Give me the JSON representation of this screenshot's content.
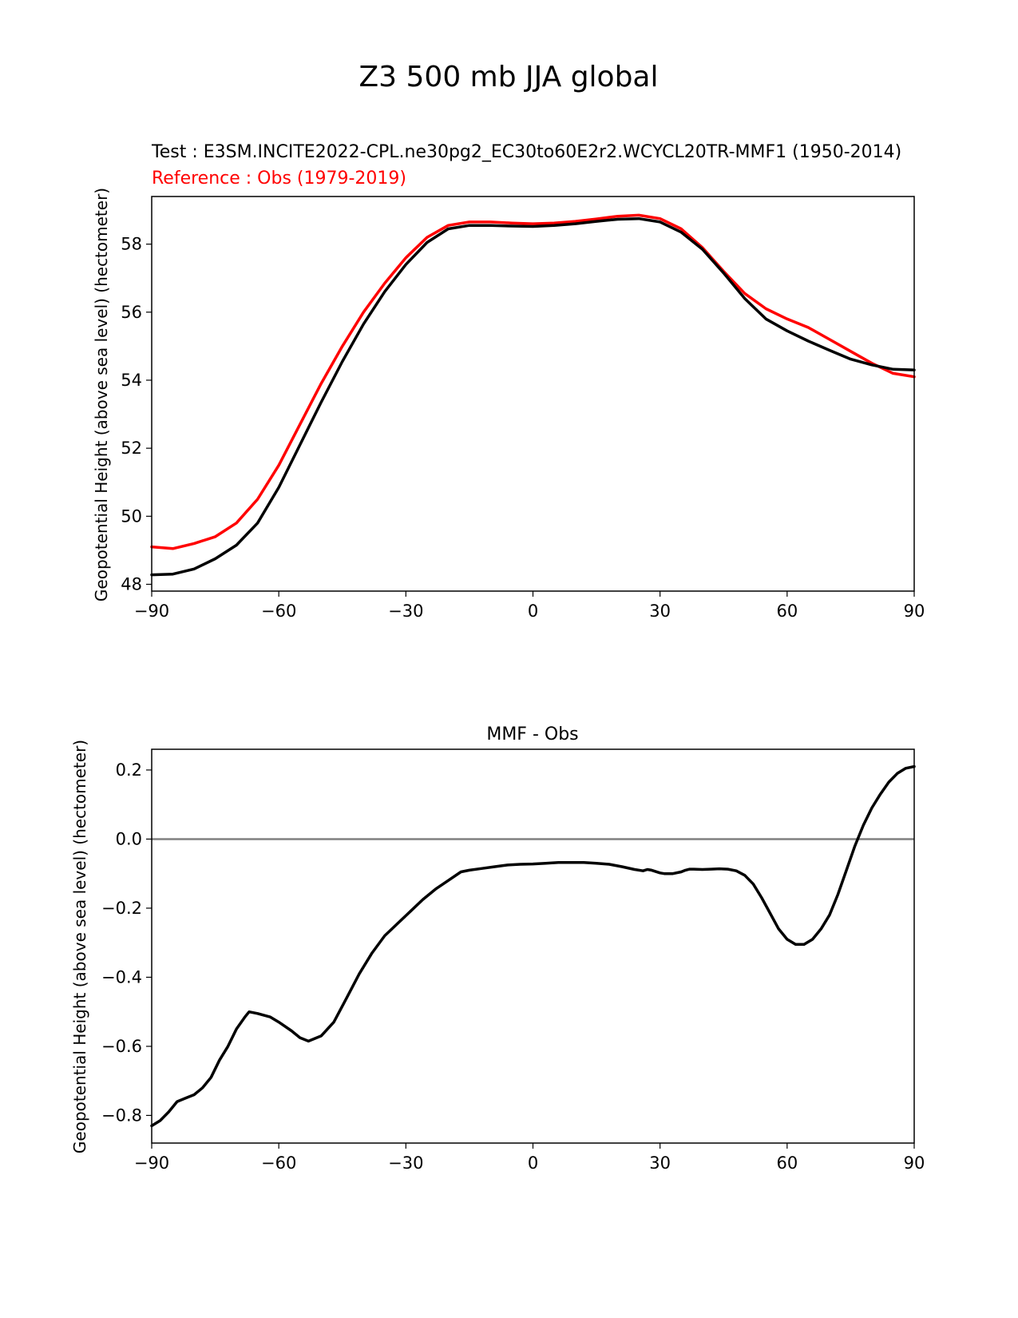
{
  "figure_title": "Z3 500 mb JJA global",
  "colors": {
    "test": "#000000",
    "reference": "#ff0000",
    "zero_line": "#808080"
  },
  "chart_data": [
    {
      "type": "line",
      "title_test": "Test : E3SM.INCITE2022-CPL.ne30pg2_EC30to60E2r2.WCYCL20TR-MMF1 (1950-2014)",
      "title_reference": "Reference : Obs (1979-2019)",
      "xlabel": "",
      "ylabel": "Geopotential Height (above sea level) (hectometer)",
      "xlim": [
        -90,
        90
      ],
      "ylim": [
        47.8,
        59.4
      ],
      "xticks": [
        -90,
        -60,
        -30,
        0,
        30,
        60,
        90
      ],
      "xtick_labels": [
        "−90",
        "−60",
        "−30",
        "0",
        "30",
        "60",
        "90"
      ],
      "yticks": [
        48,
        50,
        52,
        54,
        56,
        58
      ],
      "ytick_labels": [
        "48",
        "50",
        "52",
        "54",
        "56",
        "58"
      ],
      "x": [
        -90,
        -85,
        -80,
        -75,
        -70,
        -65,
        -60,
        -55,
        -50,
        -45,
        -40,
        -35,
        -30,
        -25,
        -20,
        -15,
        -10,
        -5,
        0,
        5,
        10,
        15,
        20,
        25,
        30,
        35,
        40,
        45,
        50,
        55,
        60,
        65,
        70,
        75,
        80,
        85,
        90
      ],
      "series": [
        {
          "name": "Reference : Obs (1979-2019)",
          "color": "#ff0000",
          "values": [
            49.1,
            49.05,
            49.2,
            49.4,
            49.8,
            50.5,
            51.5,
            52.7,
            53.9,
            55.0,
            56.0,
            56.85,
            57.6,
            58.2,
            58.55,
            58.65,
            58.65,
            58.62,
            58.6,
            58.62,
            58.67,
            58.74,
            58.82,
            58.85,
            58.75,
            58.45,
            57.9,
            57.2,
            56.55,
            56.1,
            55.8,
            55.55,
            55.2,
            54.85,
            54.5,
            54.2,
            54.1
          ]
        },
        {
          "name": "Test : E3SM.INCITE2022-CPL.ne30pg2_EC30to60E2r2.WCYCL20TR-MMF1 (1950-2014)",
          "color": "#000000",
          "values": [
            48.28,
            48.3,
            48.45,
            48.75,
            49.15,
            49.8,
            50.85,
            52.1,
            53.35,
            54.55,
            55.65,
            56.6,
            57.4,
            58.05,
            58.45,
            58.55,
            58.55,
            58.53,
            58.52,
            58.55,
            58.6,
            58.67,
            58.73,
            58.75,
            58.65,
            58.35,
            57.85,
            57.15,
            56.4,
            55.8,
            55.45,
            55.15,
            54.88,
            54.62,
            54.45,
            54.32,
            54.3
          ]
        }
      ]
    },
    {
      "type": "line",
      "title": "MMF - Obs",
      "xlabel": "",
      "ylabel": "Geopotential Height (above sea level) (hectometer)",
      "xlim": [
        -90,
        90
      ],
      "ylim": [
        -0.88,
        0.26
      ],
      "xticks": [
        -90,
        -60,
        -30,
        0,
        30,
        60,
        90
      ],
      "xtick_labels": [
        "−90",
        "−60",
        "−30",
        "0",
        "30",
        "60",
        "90"
      ],
      "yticks": [
        0.2,
        0.0,
        -0.2,
        -0.4,
        -0.6,
        -0.8
      ],
      "ytick_labels": [
        "0.2",
        "0.0",
        "−0.2",
        "−0.4",
        "−0.6",
        "−0.8"
      ],
      "zero_line": 0.0,
      "x": [
        -90,
        -88,
        -86,
        -84,
        -82,
        -80,
        -78,
        -76,
        -74,
        -72,
        -70,
        -68,
        -67,
        -65,
        -62,
        -60,
        -57,
        -55,
        -53,
        -50,
        -47,
        -44,
        -41,
        -38,
        -35,
        -32,
        -29,
        -26,
        -23,
        -20,
        -17,
        -15,
        -12,
        -9,
        -6,
        -3,
        0,
        3,
        6,
        9,
        12,
        15,
        18,
        21,
        24,
        26,
        27,
        28,
        30,
        31,
        33,
        35,
        36,
        37,
        38,
        40,
        42,
        44,
        46,
        48,
        50,
        52,
        54,
        56,
        58,
        60,
        62,
        64,
        66,
        68,
        70,
        72,
        74,
        76,
        78,
        80,
        82,
        84,
        86,
        88,
        90
      ],
      "series": [
        {
          "name": "MMF - Obs",
          "color": "#000000",
          "values": [
            -0.83,
            -0.815,
            -0.79,
            -0.76,
            -0.75,
            -0.74,
            -0.72,
            -0.69,
            -0.64,
            -0.6,
            -0.55,
            -0.515,
            -0.5,
            -0.505,
            -0.515,
            -0.53,
            -0.555,
            -0.575,
            -0.585,
            -0.57,
            -0.53,
            -0.46,
            -0.39,
            -0.33,
            -0.28,
            -0.245,
            -0.21,
            -0.175,
            -0.145,
            -0.12,
            -0.095,
            -0.09,
            -0.085,
            -0.08,
            -0.075,
            -0.073,
            -0.072,
            -0.07,
            -0.068,
            -0.068,
            -0.068,
            -0.07,
            -0.073,
            -0.08,
            -0.088,
            -0.092,
            -0.088,
            -0.09,
            -0.098,
            -0.1,
            -0.1,
            -0.095,
            -0.09,
            -0.087,
            -0.087,
            -0.088,
            -0.087,
            -0.086,
            -0.087,
            -0.092,
            -0.105,
            -0.13,
            -0.17,
            -0.215,
            -0.26,
            -0.29,
            -0.305,
            -0.305,
            -0.29,
            -0.26,
            -0.22,
            -0.16,
            -0.09,
            -0.02,
            0.04,
            0.09,
            0.13,
            0.165,
            0.19,
            0.205,
            0.21
          ]
        }
      ]
    }
  ]
}
